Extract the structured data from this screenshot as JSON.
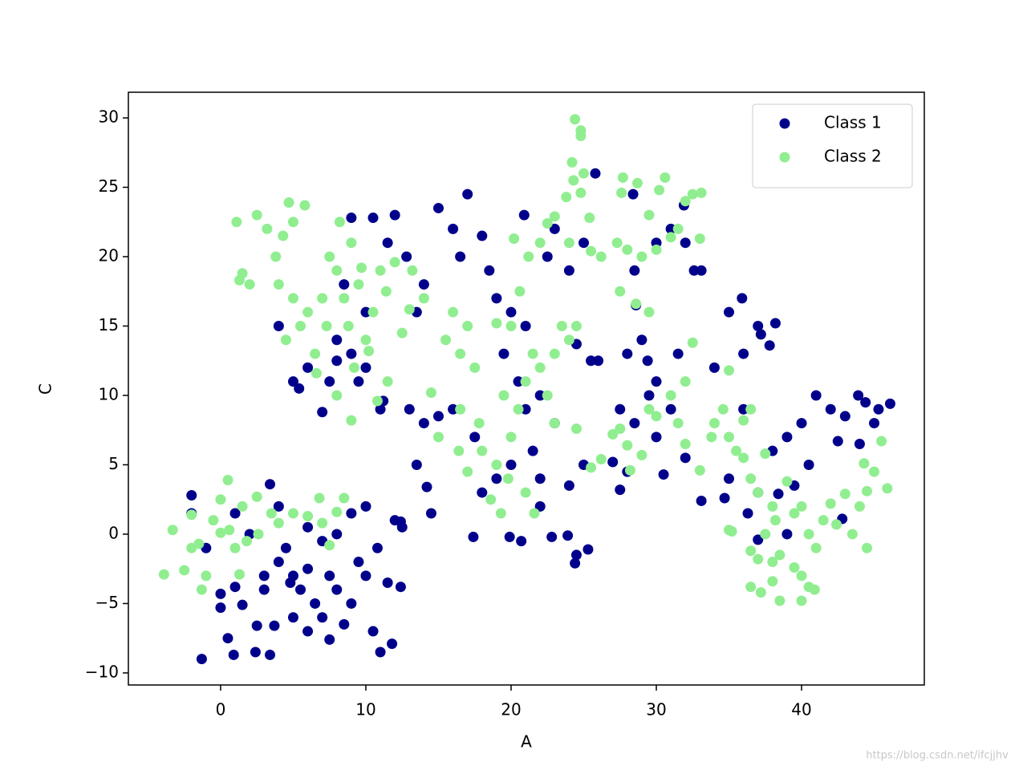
{
  "chart_data": {
    "type": "scatter",
    "x_label": "A",
    "y_label": "C",
    "xlim": [
      -6.35,
      48.45
    ],
    "xticks": [
      0,
      10,
      20,
      30,
      40
    ],
    "ylim": [
      -10.87,
      31.85
    ],
    "yticks": [
      {
        "value": -10,
        "label": "−10"
      },
      {
        "value": -5,
        "label": "−5"
      },
      0,
      5,
      10,
      15,
      20,
      25,
      30
    ],
    "grid": false,
    "legend": "upper right",
    "watermark": "https://blog.csdn.net/ifcjjhv",
    "series": [
      {
        "name": "Class 1",
        "color": "#00008b",
        "x": [
          -2,
          -1,
          0,
          1,
          0.5,
          -1.3,
          0.9,
          2.5,
          2.4,
          3.4,
          3.7,
          3,
          4,
          5,
          5.5,
          4.5,
          6,
          6.5,
          7,
          7.5,
          8,
          8.5,
          9,
          9.5,
          10,
          10.5,
          11,
          11.8,
          10.8,
          11.5,
          12.4,
          12,
          12.4,
          10,
          9,
          8,
          7,
          6,
          4,
          3.4,
          2,
          1,
          5,
          6,
          7.5,
          4.8,
          -2,
          0,
          1.5,
          3,
          4,
          5,
          5.4,
          6,
          7,
          7.5,
          8,
          9,
          9.5,
          10,
          11,
          11.2,
          8.5,
          9,
          10.5,
          11.5,
          12,
          12.8,
          10,
          8,
          13.5,
          14,
          15,
          16,
          17,
          16.5,
          18,
          18.5,
          19,
          20,
          21,
          19.5,
          20.5,
          22,
          23,
          21.5,
          20,
          19,
          18,
          17.5,
          16,
          15,
          14,
          13,
          13.5,
          14.2,
          14.5,
          12.5,
          17.4,
          19.9,
          20.7,
          22.8,
          23.9,
          24.5,
          24.4,
          25.3,
          22,
          24,
          25,
          25.5,
          26,
          24.5,
          24,
          25,
          23,
          22.5,
          20.9,
          25.8,
          21,
          22,
          27.5,
          27,
          27.5,
          28,
          28.5,
          28,
          29,
          28.6,
          29.4,
          30,
          29.5,
          28.5,
          28.4,
          30,
          31,
          32,
          32.6,
          33.1,
          31.5,
          31,
          30.5,
          30,
          32,
          31.9,
          33.1,
          34,
          35,
          35.9,
          36,
          37,
          37.2,
          38.2,
          37.8,
          36,
          35,
          34.7,
          36.3,
          37,
          38,
          39,
          40,
          41,
          42,
          43,
          43.9,
          44.4,
          45,
          45.3,
          46.1,
          44,
          42.5,
          42.8,
          40.5,
          39.5,
          38.4,
          39,
          37
        ],
        "values": [
          1.5,
          -1,
          -4.3,
          -3.8,
          -7.5,
          -9,
          -8.7,
          -6.6,
          -8.5,
          -8.7,
          -6.6,
          -3,
          -2,
          -3,
          -4,
          -1,
          -2.5,
          -5,
          -6,
          -3,
          -4,
          -6.5,
          -5,
          -2,
          -3,
          -7,
          -8.5,
          -7.9,
          -1,
          -3.5,
          -3.8,
          1,
          0.9,
          2,
          1.5,
          0,
          -0.5,
          0.5,
          2,
          3.6,
          0,
          1.5,
          -6,
          -7,
          -7.6,
          -3.5,
          2.8,
          -5.3,
          -5.1,
          -4,
          15,
          11,
          10.5,
          12,
          8.8,
          11,
          12.5,
          13,
          11,
          12,
          9,
          9.6,
          18,
          22.8,
          22.8,
          21,
          23,
          20,
          16,
          14,
          16,
          18,
          23.5,
          22,
          24.5,
          20,
          21.5,
          19,
          17,
          16,
          15,
          13,
          11,
          10,
          8,
          6,
          5,
          4,
          3,
          7,
          9,
          8.5,
          8,
          9,
          5,
          3.4,
          1.5,
          0.5,
          -0.2,
          -0.2,
          -0.5,
          -0.2,
          -0.1,
          -1.5,
          -2.1,
          -1.1,
          2,
          3.5,
          5,
          12.5,
          12.5,
          13.7,
          19,
          21,
          22,
          20,
          23,
          26,
          9,
          4,
          9,
          5.2,
          3.2,
          4.5,
          8,
          13,
          14,
          16.5,
          12.5,
          11,
          10,
          19,
          24.5,
          21,
          22,
          21,
          19,
          19,
          13,
          9,
          4.3,
          7,
          5.5,
          23.7,
          2.4,
          12,
          16,
          17,
          13,
          15,
          14.4,
          15.2,
          13.6,
          9,
          4,
          2.6,
          1.5,
          3,
          6,
          7,
          8,
          10,
          9,
          8.5,
          10,
          9.5,
          8,
          9,
          9.4,
          6.5,
          6.7,
          1.1,
          5,
          3.5,
          2.9,
          0,
          -0.4
        ]
      },
      {
        "name": "Class 2",
        "color": "#90ee90",
        "x": [
          -3.9,
          -3.3,
          -2.5,
          -2,
          -1,
          -1.3,
          -0.5,
          0,
          0.5,
          0.6,
          1,
          1.3,
          1.8,
          1.5,
          2.5,
          2.6,
          3.5,
          4,
          5,
          6,
          7,
          6.8,
          8,
          8.5,
          7.5,
          -2,
          -1.5,
          0,
          1.1,
          1.5,
          1.3,
          2,
          2.5,
          3.2,
          3.8,
          4,
          4.3,
          4.7,
          5,
          5.8,
          5,
          5.5,
          4.5,
          6,
          6.5,
          7,
          7.5,
          8,
          8.2,
          9,
          9.5,
          8.8,
          9.2,
          10,
          10.5,
          11,
          11.4,
          12,
          12.5,
          11.5,
          10.8,
          9,
          8,
          6.6,
          7.3,
          8.5,
          10.2,
          9.7,
          13.2,
          13,
          14,
          14.5,
          15,
          15.5,
          16,
          16.5,
          17,
          17.5,
          16.4,
          17,
          16.5,
          17.8,
          18,
          19,
          19.5,
          20,
          20.5,
          21,
          21.5,
          22,
          22.5,
          23,
          23.5,
          24,
          24.5,
          23,
          24.5,
          25.5,
          26.2,
          21,
          21.6,
          19.3,
          19.8,
          18.6,
          20,
          20.6,
          21.2,
          22,
          20.2,
          19,
          22.5,
          23,
          23.8,
          24.3,
          24.2,
          24.4,
          24.8,
          24.8,
          24.8,
          25,
          25.4,
          25.5,
          24,
          26.2,
          27.3,
          27.7,
          27.6,
          28.7,
          29.5,
          30.2,
          30.6,
          30,
          31.5,
          32,
          32.5,
          33.1,
          33,
          28,
          29,
          31,
          27.5,
          28.6,
          29.5,
          27,
          27.5,
          28,
          28.2,
          29,
          29.5,
          30,
          31,
          31.5,
          32,
          32.5,
          32,
          33,
          33.8,
          34,
          34.6,
          35,
          35,
          35.5,
          36,
          36.5,
          36,
          36.5,
          37,
          37.5,
          38,
          38.2,
          39,
          39.5,
          40,
          40.5,
          41,
          41.5,
          42,
          42.4,
          43,
          43.5,
          44,
          44.3,
          44.5,
          45,
          45.5,
          45.9,
          44.5,
          36.5,
          37,
          37.5,
          38,
          38.5,
          39.5,
          40,
          40.5,
          40.9,
          40,
          38.5,
          38,
          37.2,
          36.5,
          35.2,
          35
        ],
        "values": [
          -2.9,
          0.3,
          -2.6,
          -1,
          -3,
          -4,
          1,
          2.5,
          3.9,
          0.3,
          -1,
          -2.9,
          -0.5,
          2,
          2.7,
          0,
          1.5,
          0.8,
          1.5,
          1.3,
          0.8,
          2.6,
          1.6,
          2.6,
          -0.8,
          1.4,
          -0.7,
          0.1,
          22.5,
          18.8,
          18.3,
          18,
          23,
          22,
          20,
          18,
          21.5,
          23.9,
          22.5,
          23.7,
          17,
          15,
          14,
          16,
          13,
          17,
          20,
          19,
          22.5,
          21,
          18,
          15,
          12,
          14,
          16,
          19,
          17.5,
          19.6,
          14.5,
          11,
          9.6,
          8.2,
          10,
          11.6,
          15,
          17,
          13.2,
          19.2,
          19,
          16.2,
          17,
          10.2,
          7,
          14,
          16,
          13,
          15,
          12,
          6,
          4.5,
          9,
          8,
          6,
          5,
          10,
          7,
          9,
          11,
          13,
          12,
          10,
          13,
          15,
          14,
          15,
          8,
          7.6,
          4.8,
          5.4,
          3,
          1.5,
          1.5,
          4,
          2.5,
          15,
          17.5,
          20,
          21,
          21.3,
          15.2,
          22.4,
          22.9,
          24.3,
          25.5,
          26.8,
          29.9,
          29.1,
          28.7,
          24.6,
          26,
          22.8,
          20.4,
          21,
          20,
          21,
          25.7,
          24.6,
          25.3,
          23,
          24.8,
          25.7,
          20.5,
          22,
          24,
          24.5,
          24.6,
          21.3,
          20.5,
          20,
          21.4,
          17.5,
          16.6,
          16,
          7.2,
          7.6,
          6.4,
          4.6,
          5.7,
          9,
          8.5,
          10,
          8,
          11,
          13.8,
          6.5,
          4.6,
          7,
          8,
          9,
          11.8,
          7,
          6,
          8.2,
          9,
          5.5,
          4,
          3,
          5.8,
          2,
          1,
          3.8,
          1.5,
          2,
          0,
          -1,
          1,
          2.2,
          0.7,
          2.9,
          0,
          2,
          5.1,
          3.1,
          4.5,
          6.7,
          3.3,
          -1,
          -1.2,
          -1.8,
          0,
          -2,
          -1.5,
          -2.4,
          -3,
          -3.8,
          -4,
          -4.8,
          -4.8,
          -3.4,
          -4.2,
          -3.8,
          0.2,
          0.3
        ]
      }
    ]
  }
}
